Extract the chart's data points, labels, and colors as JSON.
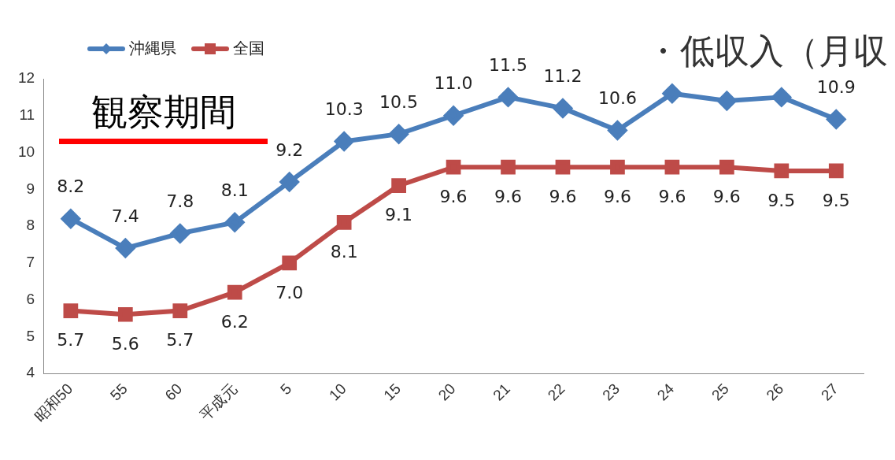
{
  "chart_data": {
    "type": "line",
    "categories": [
      "昭和50",
      "55",
      "60",
      "平成元",
      "5",
      "10",
      "15",
      "20",
      "21",
      "22",
      "23",
      "24",
      "25",
      "26",
      "27"
    ],
    "series": [
      {
        "name": "沖縄県",
        "color": "#4a7ebb",
        "marker": "diamond",
        "values": [
          8.2,
          7.4,
          7.8,
          8.1,
          9.2,
          10.3,
          10.5,
          11.0,
          11.5,
          11.2,
          10.6,
          11.6,
          11.4,
          11.5,
          10.9
        ],
        "value_labels": [
          "8.2",
          "7.4",
          "7.8",
          "8.1",
          "9.2",
          "10.3",
          "10.5",
          "11.0",
          "11.5",
          "11.2",
          "10.6",
          null,
          null,
          null,
          "10.9"
        ]
      },
      {
        "name": "全国",
        "color": "#be4b48",
        "marker": "square",
        "values": [
          5.7,
          5.6,
          5.7,
          6.2,
          7.0,
          8.1,
          9.1,
          9.6,
          9.6,
          9.6,
          9.6,
          9.6,
          9.6,
          9.5,
          9.5
        ],
        "value_labels": [
          "5.7",
          "5.6",
          "5.7",
          "6.2",
          "7.0",
          "8.1",
          "9.1",
          "9.6",
          "9.6",
          "9.6",
          "9.6",
          "9.6",
          "9.6",
          "9.5",
          "9.5"
        ]
      }
    ],
    "ylim": [
      4,
      12
    ],
    "yticks": [
      4,
      5,
      6,
      7,
      8,
      9,
      10,
      11,
      12
    ],
    "grid": false,
    "legend": "top left",
    "annotations": [
      "観察期間",
      "・低収入（月収"
    ]
  }
}
